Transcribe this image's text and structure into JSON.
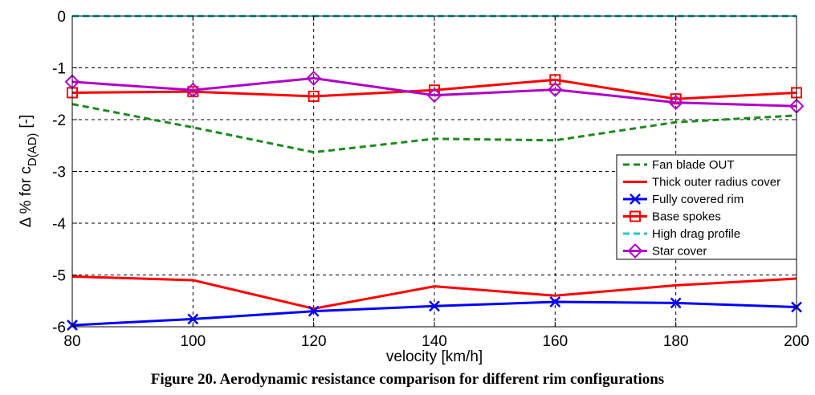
{
  "caption": "Figure 20. Aerodynamic resistance comparison for different rim configurations",
  "chart_data": {
    "type": "line",
    "xlabel": "velocity [km/h]",
    "ylabel_main": "Δ % for c",
    "ylabel_sub": "D(AD)",
    "ylabel_unit": "[-]",
    "xlim": [
      80,
      200
    ],
    "ylim": [
      -6,
      0
    ],
    "x": [
      80,
      100,
      120,
      140,
      160,
      180,
      200
    ],
    "xticks": [
      80,
      100,
      120,
      140,
      160,
      180,
      200
    ],
    "yticks": [
      0,
      -1,
      -2,
      -3,
      -4,
      -5,
      -6
    ],
    "grid": true,
    "legend_position": "right",
    "series": [
      {
        "name": "Fan blade OUT",
        "color": "#1e8a1e",
        "style": "dashed",
        "marker": "none",
        "values": [
          -1.7,
          -2.15,
          -2.63,
          -2.37,
          -2.4,
          -2.05,
          -1.92
        ]
      },
      {
        "name": "Thick outer radius cover",
        "color": "#ff0000",
        "style": "solid",
        "marker": "none",
        "values": [
          -5.03,
          -5.1,
          -5.65,
          -5.22,
          -5.4,
          -5.2,
          -5.07
        ]
      },
      {
        "name": "Fully covered rim",
        "color": "#0000ff",
        "style": "solid",
        "marker": "x",
        "values": [
          -5.97,
          -5.85,
          -5.7,
          -5.6,
          -5.52,
          -5.54,
          -5.62
        ]
      },
      {
        "name": "Base spokes",
        "color": "#ff0000",
        "style": "solid",
        "marker": "square",
        "values": [
          -1.48,
          -1.46,
          -1.55,
          -1.43,
          -1.23,
          -1.6,
          -1.48
        ]
      },
      {
        "name": "High drag profile",
        "color": "#22c8c8",
        "style": "dashed",
        "marker": "none",
        "values": [
          0,
          0,
          0,
          0,
          0,
          0,
          0
        ]
      },
      {
        "name": "Star cover",
        "color": "#b000c8",
        "style": "solid",
        "marker": "diamond",
        "values": [
          -1.27,
          -1.43,
          -1.2,
          -1.53,
          -1.42,
          -1.67,
          -1.74
        ]
      }
    ]
  }
}
